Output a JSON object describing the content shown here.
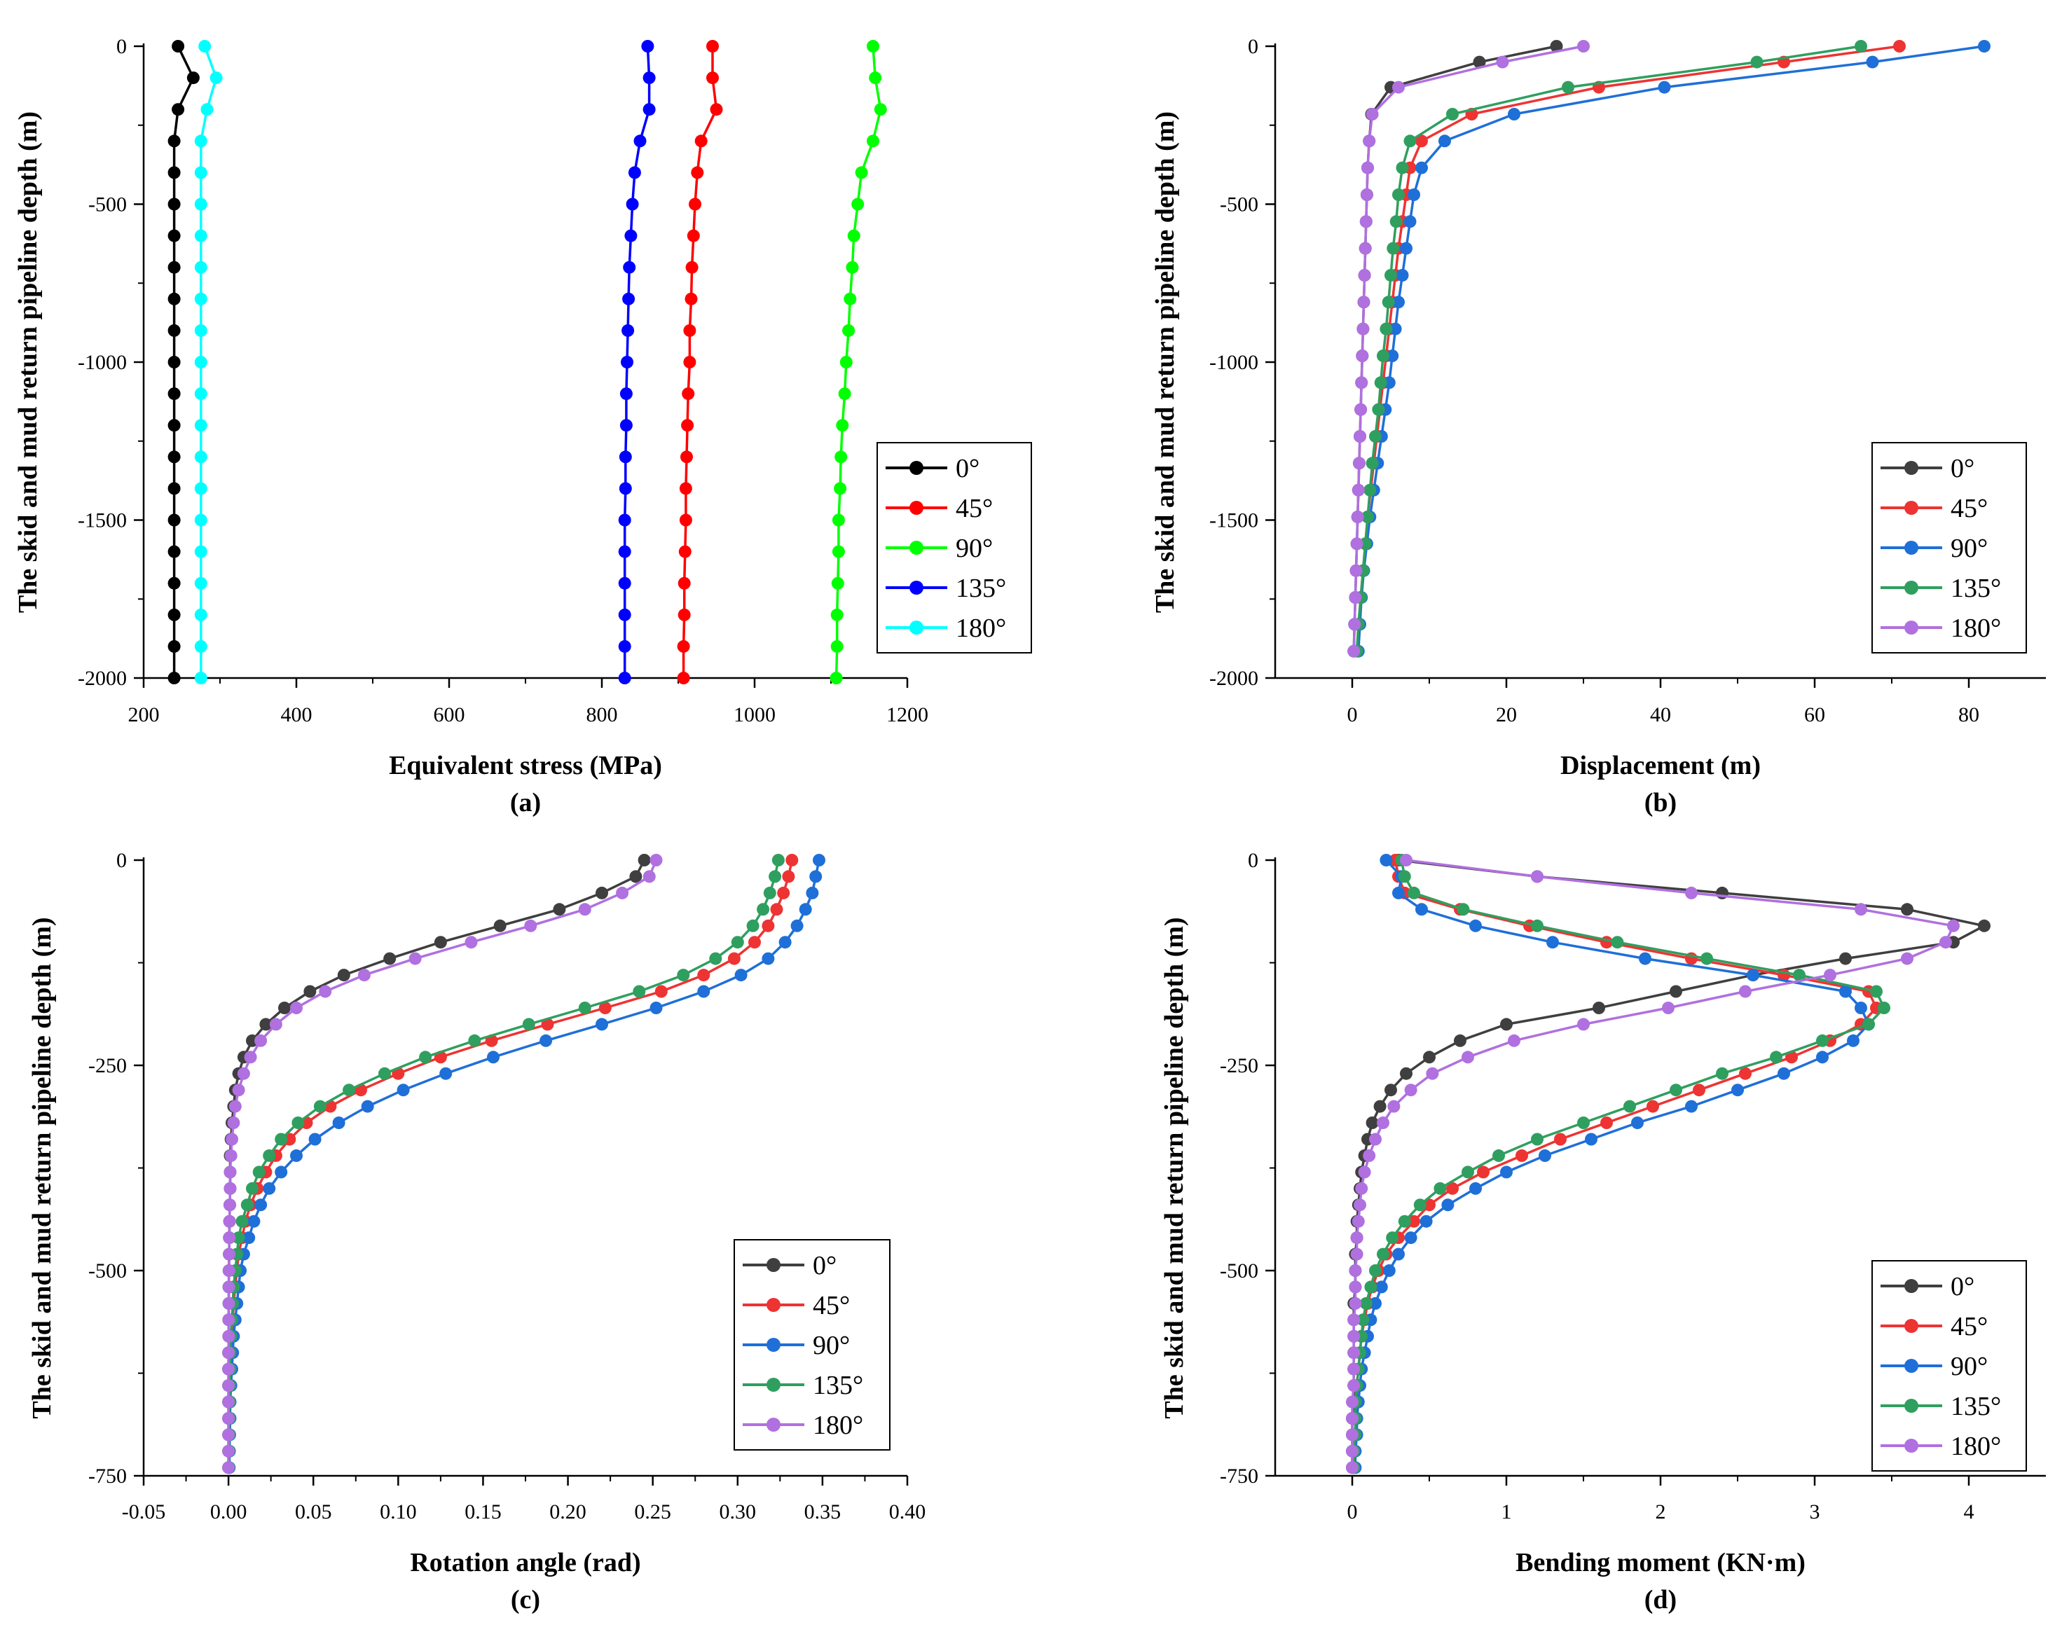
{
  "figure": {
    "legend_labels": [
      "0°",
      "45°",
      "90°",
      "135°",
      "180°"
    ],
    "series_colors": {
      "a": [
        "#000000",
        "#ff0000",
        "#00ff00",
        "#0000ff",
        "#00ffff"
      ],
      "bcd": [
        "#3f3f3f",
        "#ee3333",
        "#1f6fd8",
        "#2f9f5f",
        "#b070e0"
      ]
    }
  },
  "chart_data": [
    {
      "id": "a",
      "type": "line",
      "caption": "(a)",
      "xlabel": "Equivalent stress (MPa)",
      "ylabel": "The skid and mud return pipeline depth (m)",
      "xlim": [
        200,
        1200
      ],
      "ylim": [
        -2000,
        0
      ],
      "xticks": [
        200,
        400,
        600,
        800,
        1000,
        1200
      ],
      "xtick_labels": [
        "200",
        "400",
        "600",
        "800",
        "1000",
        "1200"
      ],
      "yticks": [
        0,
        -500,
        -1000,
        -1500,
        -2000
      ],
      "ytick_labels": [
        "0",
        "-500",
        "-1000",
        "-1500",
        "-2000"
      ],
      "legend_position": "right",
      "y": [
        0,
        -100,
        -200,
        -300,
        -400,
        -500,
        -600,
        -700,
        -800,
        -900,
        -1000,
        -1100,
        -1200,
        -1300,
        -1400,
        -1500,
        -1600,
        -1700,
        -1800,
        -1900,
        -2000
      ],
      "series": [
        {
          "name": "0°",
          "values": [
            245,
            265,
            245,
            240,
            240,
            240,
            240,
            240,
            240,
            240,
            240,
            240,
            240,
            240,
            240,
            240,
            240,
            240,
            240,
            240,
            240
          ]
        },
        {
          "name": "45°",
          "values": [
            945,
            945,
            950,
            930,
            925,
            922,
            920,
            918,
            917,
            915,
            915,
            913,
            912,
            911,
            910,
            910,
            909,
            908,
            908,
            907,
            907
          ]
        },
        {
          "name": "90°",
          "values": [
            1155,
            1158,
            1165,
            1155,
            1140,
            1135,
            1130,
            1128,
            1125,
            1123,
            1120,
            1118,
            1115,
            1113,
            1112,
            1110,
            1110,
            1109,
            1108,
            1108,
            1107
          ]
        },
        {
          "name": "135°",
          "values": [
            860,
            862,
            862,
            850,
            843,
            840,
            838,
            836,
            835,
            834,
            833,
            832,
            832,
            831,
            831,
            830,
            830,
            830,
            830,
            830,
            830
          ]
        },
        {
          "name": "180°",
          "values": [
            280,
            295,
            283,
            275,
            275,
            275,
            275,
            275,
            275,
            275,
            275,
            275,
            275,
            275,
            275,
            275,
            275,
            275,
            275,
            275,
            275
          ]
        }
      ]
    },
    {
      "id": "b",
      "type": "line",
      "caption": "(b)",
      "xlabel": "Displacement (m)",
      "ylabel": "The skid and mud return pipeline depth (m)",
      "xlim": [
        -10,
        90
      ],
      "ylim": [
        -2000,
        0
      ],
      "xticks": [
        0,
        20,
        40,
        60,
        80
      ],
      "xtick_labels": [
        "0",
        "20",
        "40",
        "60",
        "80"
      ],
      "yticks": [
        0,
        -500,
        -1000,
        -1500,
        -2000
      ],
      "ytick_labels": [
        "0",
        "-500",
        "-1000",
        "-1500",
        "-2000"
      ],
      "legend_position": "right",
      "y": [
        0,
        -50,
        -130,
        -215,
        -300,
        -385,
        -470,
        -555,
        -640,
        -725,
        -810,
        -895,
        -980,
        -1065,
        -1150,
        -1235,
        -1320,
        -1405,
        -1490,
        -1575,
        -1660,
        -1745,
        -1830,
        -1915
      ],
      "series": [
        {
          "name": "0°",
          "values": [
            26.5,
            16.5,
            5.0,
            2.5,
            2.2,
            2.0,
            1.9,
            1.8,
            1.7,
            1.6,
            1.5,
            1.4,
            1.3,
            1.2,
            1.1,
            1.0,
            0.9,
            0.8,
            0.7,
            0.6,
            0.5,
            0.4,
            0.3,
            0.2
          ]
        },
        {
          "name": "45°",
          "values": [
            71.0,
            56.0,
            32.0,
            15.5,
            9.0,
            7.5,
            7.0,
            6.5,
            6.0,
            5.6,
            5.2,
            4.8,
            4.4,
            4.0,
            3.6,
            3.2,
            2.8,
            2.4,
            2.0,
            1.7,
            1.4,
            1.1,
            0.9,
            0.7
          ]
        },
        {
          "name": "90°",
          "values": [
            82.0,
            67.5,
            40.5,
            21.0,
            12.0,
            9.0,
            8.0,
            7.5,
            7.0,
            6.5,
            6.0,
            5.6,
            5.2,
            4.8,
            4.3,
            3.8,
            3.3,
            2.8,
            2.3,
            1.9,
            1.5,
            1.2,
            1.0,
            0.8
          ]
        },
        {
          "name": "135°",
          "values": [
            66.0,
            52.5,
            28.0,
            13.0,
            7.5,
            6.5,
            6.0,
            5.7,
            5.3,
            5.0,
            4.7,
            4.4,
            4.0,
            3.7,
            3.4,
            3.0,
            2.6,
            2.3,
            2.0,
            1.7,
            1.4,
            1.1,
            0.8,
            0.6
          ]
        },
        {
          "name": "180°",
          "values": [
            30.0,
            19.5,
            6.0,
            2.6,
            2.2,
            2.0,
            1.9,
            1.8,
            1.7,
            1.6,
            1.5,
            1.4,
            1.3,
            1.2,
            1.1,
            1.0,
            0.9,
            0.8,
            0.7,
            0.6,
            0.5,
            0.4,
            0.3,
            0.2
          ]
        }
      ]
    },
    {
      "id": "c",
      "type": "line",
      "caption": "(c)",
      "xlabel": "Rotation angle (rad)",
      "ylabel": "The skid and mud return pipeline depth (m)",
      "xlim": [
        -0.05,
        0.4
      ],
      "ylim": [
        -750,
        0
      ],
      "xticks": [
        -0.05,
        0.0,
        0.05,
        0.1,
        0.15,
        0.2,
        0.25,
        0.3,
        0.35,
        0.4
      ],
      "xtick_labels": [
        "-0.05",
        "0.00",
        "0.05",
        "0.10",
        "0.15",
        "0.20",
        "0.25",
        "0.30",
        "0.35",
        "0.40"
      ],
      "yticks": [
        0,
        -250,
        -500,
        -750
      ],
      "ytick_labels": [
        "0",
        "-250",
        "-500",
        "-750"
      ],
      "legend_position": "lower-right",
      "y": [
        0,
        -20,
        -40,
        -60,
        -80,
        -100,
        -120,
        -140,
        -160,
        -180,
        -200,
        -220,
        -240,
        -260,
        -280,
        -300,
        -320,
        -340,
        -360,
        -380,
        -400,
        -420,
        -440,
        -460,
        -480,
        -500,
        -520,
        -540,
        -560,
        -580,
        -600,
        -620,
        -640,
        -660,
        -680,
        -700,
        -720,
        -740
      ],
      "series": [
        {
          "name": "0°",
          "values": [
            0.245,
            0.24,
            0.22,
            0.195,
            0.16,
            0.125,
            0.095,
            0.068,
            0.048,
            0.033,
            0.022,
            0.014,
            0.009,
            0.006,
            0.004,
            0.003,
            0.002,
            0.0015,
            0.001,
            0.001,
            0.001,
            0.0008,
            0.0006,
            0.0005,
            0.0004,
            0.0003,
            0.0002,
            0.0002,
            0.0001,
            0.0001,
            0,
            0,
            0,
            0,
            0,
            0,
            0,
            0
          ]
        },
        {
          "name": "45°",
          "values": [
            0.332,
            0.33,
            0.327,
            0.323,
            0.318,
            0.31,
            0.298,
            0.28,
            0.255,
            0.222,
            0.188,
            0.155,
            0.125,
            0.1,
            0.078,
            0.06,
            0.046,
            0.036,
            0.028,
            0.022,
            0.017,
            0.013,
            0.01,
            0.008,
            0.006,
            0.005,
            0.004,
            0.003,
            0.0025,
            0.002,
            0.0015,
            0.001,
            0.001,
            0.0008,
            0.0006,
            0.0005,
            0.0004,
            0.0003
          ]
        },
        {
          "name": "90°",
          "values": [
            0.348,
            0.346,
            0.344,
            0.34,
            0.335,
            0.328,
            0.318,
            0.302,
            0.28,
            0.252,
            0.22,
            0.187,
            0.156,
            0.128,
            0.103,
            0.082,
            0.065,
            0.051,
            0.04,
            0.031,
            0.024,
            0.019,
            0.015,
            0.012,
            0.009,
            0.007,
            0.006,
            0.005,
            0.004,
            0.003,
            0.0025,
            0.002,
            0.0015,
            0.001,
            0.001,
            0.0008,
            0.0006,
            0.0005
          ]
        },
        {
          "name": "135°",
          "values": [
            0.324,
            0.322,
            0.319,
            0.315,
            0.309,
            0.3,
            0.287,
            0.268,
            0.242,
            0.21,
            0.177,
            0.145,
            0.116,
            0.092,
            0.071,
            0.054,
            0.041,
            0.031,
            0.024,
            0.018,
            0.014,
            0.011,
            0.008,
            0.006,
            0.005,
            0.004,
            0.003,
            0.0025,
            0.002,
            0.0015,
            0.001,
            0.001,
            0.0008,
            0.0006,
            0.0005,
            0.0004,
            0.0003,
            0.0002
          ]
        },
        {
          "name": "180°",
          "values": [
            0.252,
            0.248,
            0.232,
            0.21,
            0.178,
            0.143,
            0.11,
            0.08,
            0.057,
            0.04,
            0.028,
            0.019,
            0.013,
            0.009,
            0.006,
            0.004,
            0.003,
            0.002,
            0.0015,
            0.001,
            0.001,
            0.0008,
            0.0006,
            0.0005,
            0.0004,
            0.0003,
            0.0002,
            0.0002,
            0.0001,
            0.0001,
            0,
            0,
            0,
            0,
            0,
            0,
            0,
            0
          ]
        }
      ]
    },
    {
      "id": "d",
      "type": "line",
      "caption": "(d)",
      "xlabel": "Bending moment (KN·m)",
      "ylabel": "The skid and mud return pipeline depth (m)",
      "xlim": [
        -0.5,
        4.5
      ],
      "ylim": [
        -750,
        0
      ],
      "xticks": [
        0,
        1,
        2,
        3,
        4
      ],
      "xtick_labels": [
        "0",
        "1",
        "2",
        "3",
        "4"
      ],
      "yticks": [
        0,
        -250,
        -500,
        -750
      ],
      "ytick_labels": [
        "0",
        "-250",
        "-500",
        "-750"
      ],
      "legend_position": "lower-right",
      "y": [
        0,
        -20,
        -40,
        -60,
        -80,
        -100,
        -120,
        -140,
        -160,
        -180,
        -200,
        -220,
        -240,
        -260,
        -280,
        -300,
        -320,
        -340,
        -360,
        -380,
        -400,
        -420,
        -440,
        -460,
        -480,
        -500,
        -520,
        -540,
        -560,
        -580,
        -600,
        -620,
        -640,
        -660,
        -680,
        -700,
        -720,
        -740
      ],
      "series": [
        {
          "name": "0°",
          "values": [
            0.3,
            1.2,
            2.4,
            3.6,
            4.1,
            3.9,
            3.2,
            2.6,
            2.1,
            1.6,
            1.0,
            0.7,
            0.5,
            0.35,
            0.25,
            0.18,
            0.13,
            0.1,
            0.08,
            0.06,
            0.05,
            0.04,
            0.03,
            0.03,
            0.02,
            0.02,
            0.02,
            0.01,
            0.01,
            0.01,
            0.01,
            0.01,
            0.01,
            0.01,
            0.0,
            0.0,
            0.0,
            0.0
          ]
        },
        {
          "name": "45°",
          "values": [
            0.28,
            0.3,
            0.34,
            0.7,
            1.15,
            1.65,
            2.2,
            2.8,
            3.35,
            3.4,
            3.3,
            3.1,
            2.85,
            2.55,
            2.25,
            1.95,
            1.65,
            1.35,
            1.1,
            0.85,
            0.65,
            0.5,
            0.4,
            0.3,
            0.22,
            0.17,
            0.13,
            0.1,
            0.08,
            0.06,
            0.05,
            0.04,
            0.03,
            0.03,
            0.02,
            0.02,
            0.01,
            0.01
          ]
        },
        {
          "name": "90°",
          "values": [
            0.22,
            0.32,
            0.3,
            0.45,
            0.8,
            1.3,
            1.9,
            2.6,
            3.2,
            3.3,
            3.35,
            3.25,
            3.05,
            2.8,
            2.5,
            2.2,
            1.85,
            1.55,
            1.25,
            1.0,
            0.8,
            0.62,
            0.48,
            0.38,
            0.3,
            0.24,
            0.19,
            0.15,
            0.12,
            0.1,
            0.08,
            0.06,
            0.05,
            0.04,
            0.03,
            0.03,
            0.02,
            0.02
          ]
        },
        {
          "name": "135°",
          "values": [
            0.32,
            0.34,
            0.4,
            0.72,
            1.2,
            1.72,
            2.3,
            2.9,
            3.4,
            3.45,
            3.35,
            3.05,
            2.75,
            2.4,
            2.1,
            1.8,
            1.5,
            1.2,
            0.95,
            0.75,
            0.57,
            0.44,
            0.34,
            0.26,
            0.2,
            0.15,
            0.12,
            0.09,
            0.07,
            0.06,
            0.05,
            0.04,
            0.03,
            0.02,
            0.02,
            0.02,
            0.01,
            0.01
          ]
        },
        {
          "name": "180°",
          "values": [
            0.35,
            1.2,
            2.2,
            3.3,
            3.9,
            3.85,
            3.6,
            3.1,
            2.55,
            2.05,
            1.5,
            1.05,
            0.75,
            0.52,
            0.38,
            0.27,
            0.2,
            0.15,
            0.11,
            0.08,
            0.06,
            0.05,
            0.04,
            0.03,
            0.03,
            0.02,
            0.02,
            0.02,
            0.01,
            0.01,
            0.01,
            0.01,
            0.01,
            0.0,
            0.0,
            0.0,
            0.0,
            0.0
          ]
        }
      ]
    }
  ]
}
